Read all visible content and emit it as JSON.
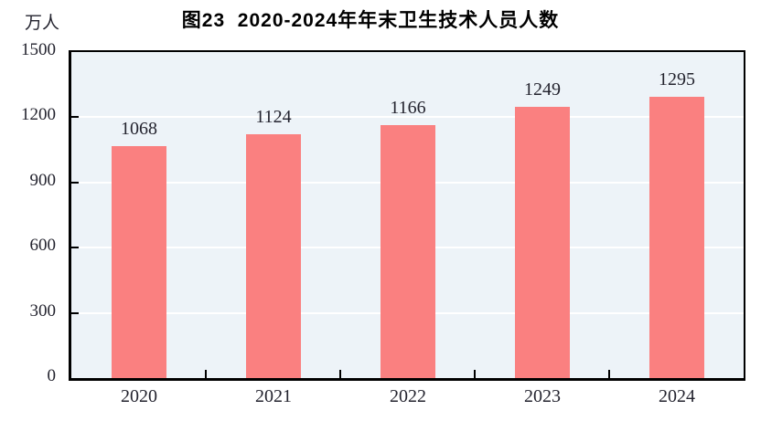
{
  "chart_data": {
    "type": "bar",
    "title": "图23  2020-2024年年末卫生技术人员人数",
    "categories": [
      "2020",
      "2021",
      "2022",
      "2023",
      "2024"
    ],
    "values": [
      1068,
      1124,
      1166,
      1249,
      1295
    ],
    "xlabel": "",
    "ylabel": "万人",
    "ylim": [
      0,
      1500
    ],
    "yticks": [
      0,
      300,
      600,
      900,
      1200,
      1500
    ],
    "grid": "horizontal",
    "legend_position": "none",
    "data_labels": true,
    "colors": {
      "bar": "#FA8080",
      "plot_background": "#EDF3F8",
      "gridline": "#FFFFFF",
      "axis_frame": "#000000",
      "text": "#23232E"
    }
  }
}
